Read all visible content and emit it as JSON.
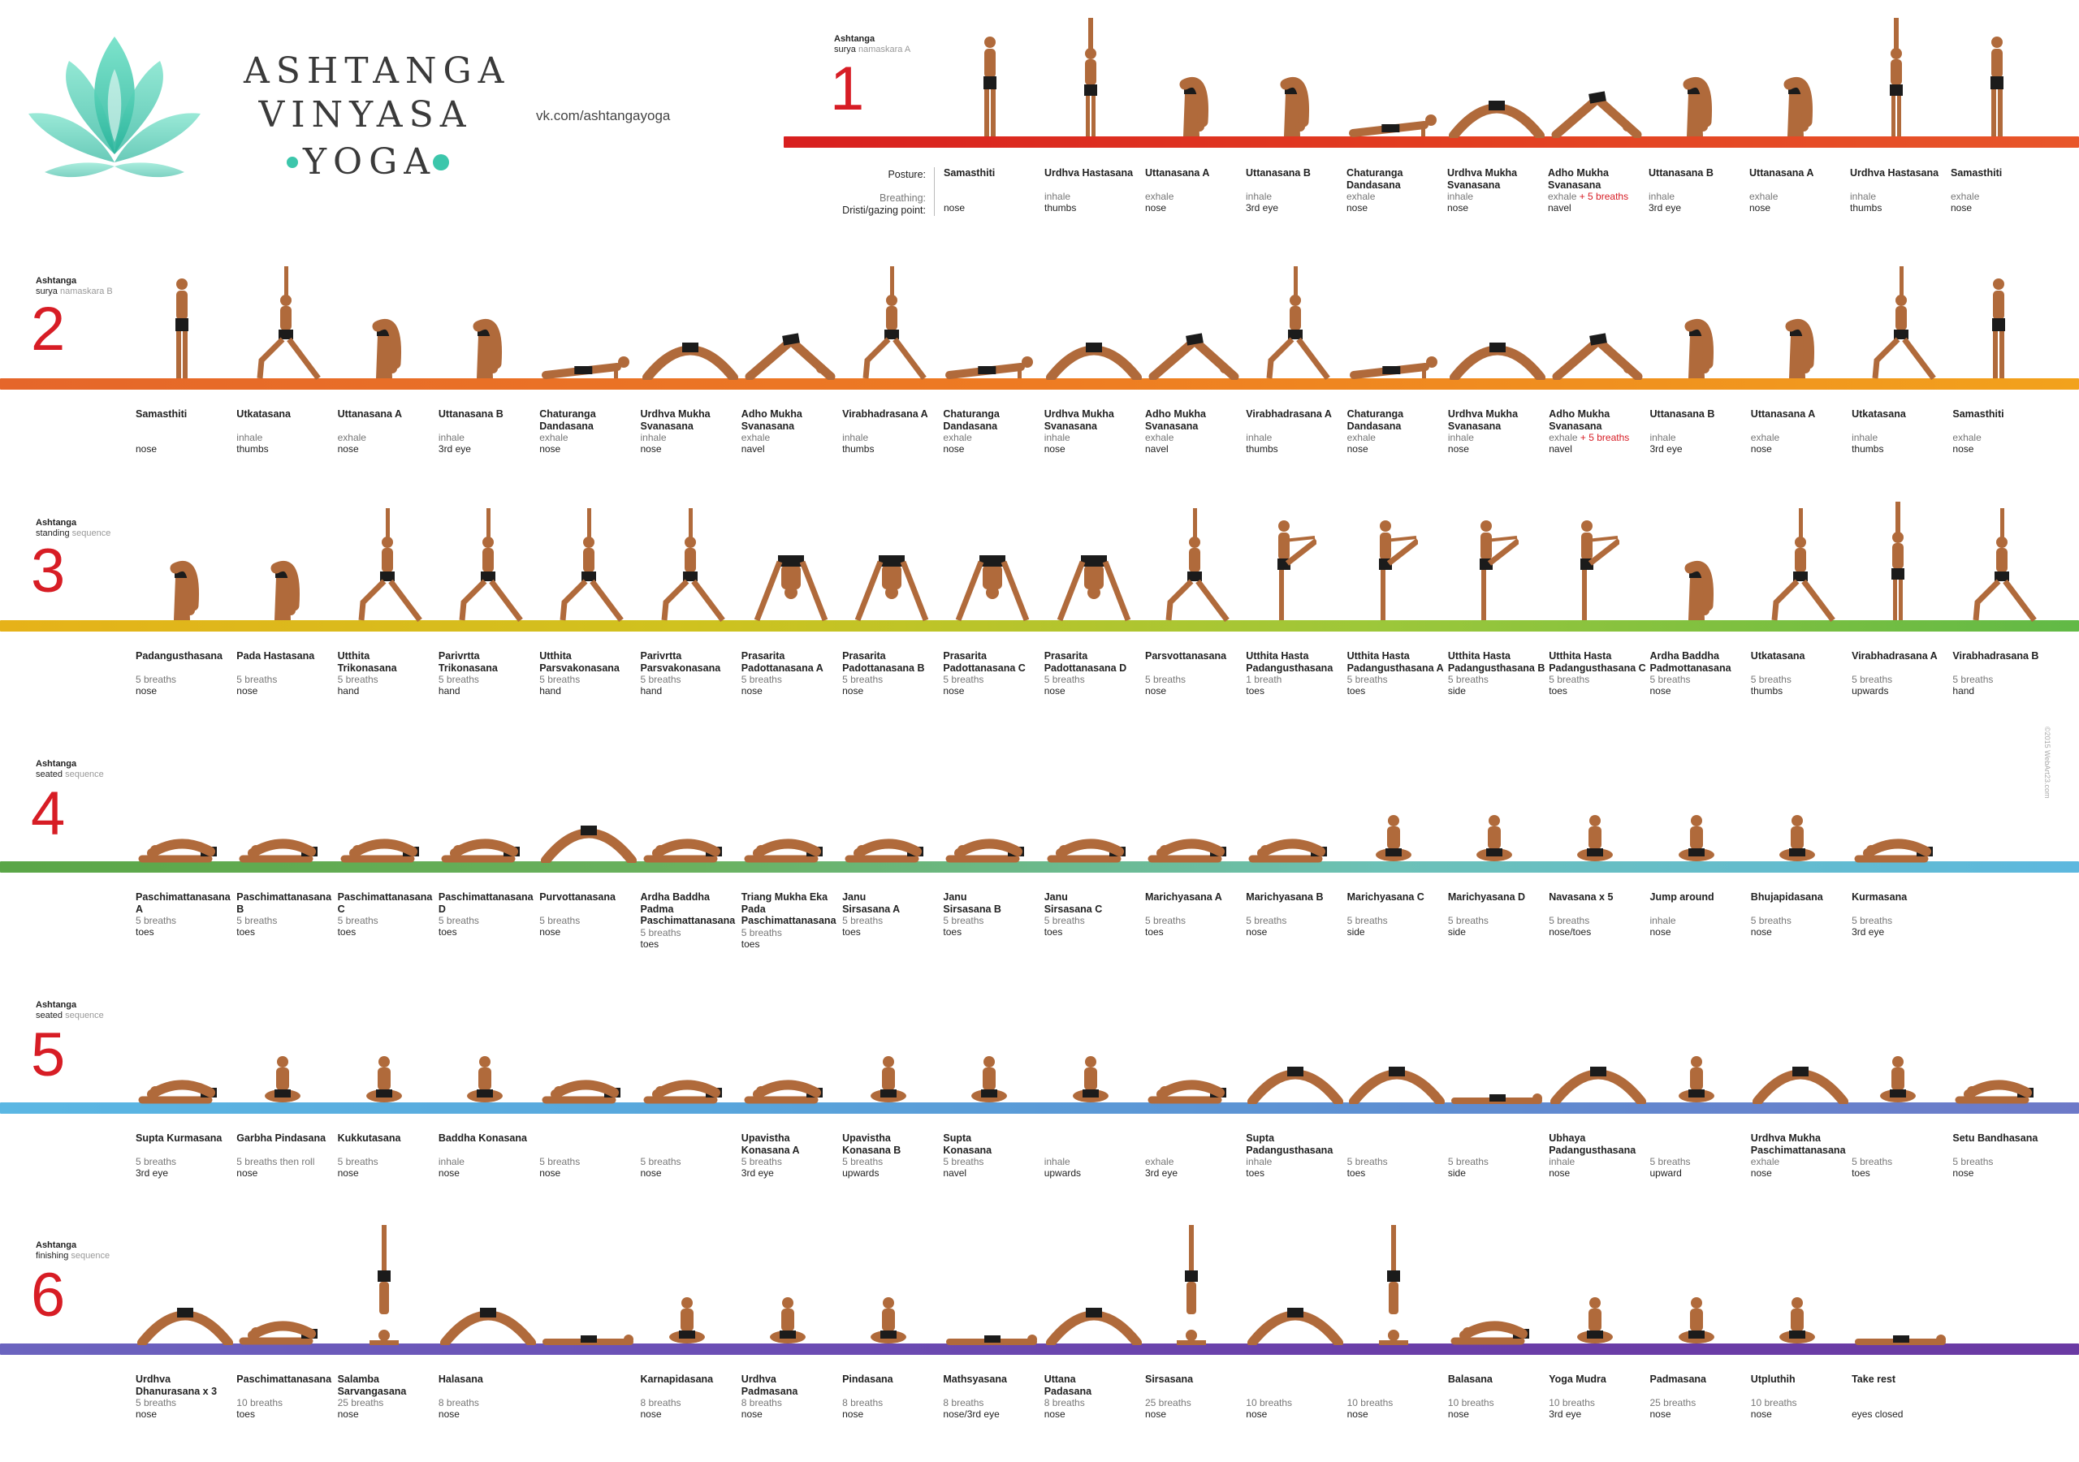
{
  "brand": {
    "title_line1": "ASHTANGA",
    "title_line2": "VINYASA",
    "title_line3": "YOGA",
    "url": "vk.com/ashtangayoga"
  },
  "colors": {
    "accent_red": "#d71d25",
    "logo_teal": "#3cc6ab"
  },
  "legend": {
    "posture": "Posture:",
    "breathing": "Breathing:",
    "drishti": "Dristi/gazing point:"
  },
  "credit": "©2015 WebArt23.com",
  "sections": [
    {
      "number": "1",
      "label": "Ashtanga",
      "sub_dark": "surya",
      "sub_grey": "namaskara A",
      "poses": [
        {
          "name": "Samasthiti",
          "breath": "",
          "drishti": "nose"
        },
        {
          "name": "Urdhva Hastasana",
          "breath": "inhale",
          "drishti": "thumbs"
        },
        {
          "name": "Uttanasana A",
          "breath": "exhale",
          "drishti": "nose"
        },
        {
          "name": "Uttanasana B",
          "breath": "inhale",
          "drishti": "3rd eye"
        },
        {
          "name": "Chaturanga\nDandasana",
          "breath": "exhale",
          "drishti": "nose"
        },
        {
          "name": "Urdhva Mukha\nSvanasana",
          "breath": "inhale",
          "drishti": "nose"
        },
        {
          "name": "Adho Mukha\nSvanasana",
          "breath": "exhale",
          "extra": "+ 5 breaths",
          "drishti": "navel"
        },
        {
          "name": "Uttanasana B",
          "breath": "inhale",
          "drishti": "3rd eye"
        },
        {
          "name": "Uttanasana A",
          "breath": "exhale",
          "drishti": "nose"
        },
        {
          "name": "Urdhva Hastasana",
          "breath": "inhale",
          "drishti": "thumbs"
        },
        {
          "name": "Samasthiti",
          "breath": "exhale",
          "drishti": "nose"
        }
      ]
    },
    {
      "number": "2",
      "label": "Ashtanga",
      "sub_dark": "surya",
      "sub_grey": "namaskara B",
      "poses": [
        {
          "name": "Samasthiti",
          "breath": "",
          "drishti": "nose"
        },
        {
          "name": "Utkatasana",
          "breath": "inhale",
          "drishti": "thumbs"
        },
        {
          "name": "Uttanasana A",
          "breath": "exhale",
          "drishti": "nose"
        },
        {
          "name": "Uttanasana B",
          "breath": "inhale",
          "drishti": "3rd eye"
        },
        {
          "name": "Chaturanga\nDandasana",
          "breath": "exhale",
          "drishti": "nose"
        },
        {
          "name": "Urdhva Mukha\nSvanasana",
          "breath": "inhale",
          "drishti": "nose"
        },
        {
          "name": "Adho Mukha\nSvanasana",
          "breath": "exhale",
          "drishti": "navel"
        },
        {
          "name": "Virabhadrasana A",
          "breath": "inhale",
          "drishti": "thumbs"
        },
        {
          "name": "Chaturanga\nDandasana",
          "breath": "exhale",
          "drishti": "nose"
        },
        {
          "name": "Urdhva Mukha\nSvanasana",
          "breath": "inhale",
          "drishti": "nose"
        },
        {
          "name": "Adho Mukha\nSvanasana",
          "breath": "exhale",
          "drishti": "navel"
        },
        {
          "name": "Virabhadrasana A",
          "breath": "inhale",
          "drishti": "thumbs"
        },
        {
          "name": "Chaturanga\nDandasana",
          "breath": "exhale",
          "drishti": "nose"
        },
        {
          "name": "Urdhva Mukha\nSvanasana",
          "breath": "inhale",
          "drishti": "nose"
        },
        {
          "name": "Adho Mukha\nSvanasana",
          "breath": "exhale",
          "extra": "+ 5 breaths",
          "drishti": "navel"
        },
        {
          "name": "Uttanasana B",
          "breath": "inhale",
          "drishti": "3rd eye"
        },
        {
          "name": "Uttanasana A",
          "breath": "exhale",
          "drishti": "nose"
        },
        {
          "name": "Utkatasana",
          "breath": "inhale",
          "drishti": "thumbs"
        },
        {
          "name": "Samasthiti",
          "breath": "exhale",
          "drishti": "nose"
        }
      ]
    },
    {
      "number": "3",
      "label": "Ashtanga",
      "sub_dark": "standing",
      "sub_grey": "sequence",
      "poses": [
        {
          "name": "Padangusthasana",
          "breath": "5 breaths",
          "drishti": "nose"
        },
        {
          "name": "Pada Hastasana",
          "breath": "5 breaths",
          "drishti": "nose"
        },
        {
          "name": "Utthita\nTrikonasana",
          "breath": "5 breaths",
          "drishti": "hand"
        },
        {
          "name": "Parivrtta\nTrikonasana",
          "breath": "5 breaths",
          "drishti": "hand"
        },
        {
          "name": "Utthita\nParsvakonasana",
          "breath": "5 breaths",
          "drishti": "hand"
        },
        {
          "name": "Parivrtta\nParsvakonasana",
          "breath": "5 breaths",
          "drishti": "hand"
        },
        {
          "name": "Prasarita\nPadottanasana A",
          "breath": "5 breaths",
          "drishti": "nose"
        },
        {
          "name": "Prasarita\nPadottanasana B",
          "breath": "5 breaths",
          "drishti": "nose"
        },
        {
          "name": "Prasarita\nPadottanasana C",
          "breath": "5 breaths",
          "drishti": "nose"
        },
        {
          "name": "Prasarita\nPadottanasana D",
          "breath": "5 breaths",
          "drishti": "nose"
        },
        {
          "name": "Parsvottanasana",
          "breath": "5 breaths",
          "drishti": "nose"
        },
        {
          "name": "Utthita Hasta\nPadangusthasana",
          "breath": "1 breath",
          "drishti": "toes"
        },
        {
          "name": "Utthita Hasta\nPadangusthasana A",
          "breath": "5 breaths",
          "drishti": "toes"
        },
        {
          "name": "Utthita Hasta\nPadangusthasana B",
          "breath": "5 breaths",
          "drishti": "side"
        },
        {
          "name": "Utthita Hasta\nPadangusthasana C",
          "breath": "5 breaths",
          "drishti": "toes"
        },
        {
          "name": "Ardha Baddha\nPadmottanasana",
          "breath": "5 breaths",
          "drishti": "nose"
        },
        {
          "name": "Utkatasana",
          "breath": "5 breaths",
          "drishti": "thumbs"
        },
        {
          "name": "Virabhadrasana A",
          "breath": "5 breaths",
          "drishti": "upwards"
        },
        {
          "name": "Virabhadrasana B",
          "breath": "5 breaths",
          "drishti": "hand"
        }
      ]
    },
    {
      "number": "4",
      "label": "Ashtanga",
      "sub_dark": "seated",
      "sub_grey": "sequence",
      "poses": [
        {
          "name": "Paschimattanasana\nA",
          "breath": "5 breaths",
          "drishti": "toes"
        },
        {
          "name": "Paschimattanasana\nB",
          "breath": "5 breaths",
          "drishti": "toes"
        },
        {
          "name": "Paschimattanasana\nC",
          "breath": "5 breaths",
          "drishti": "toes"
        },
        {
          "name": "Paschimattanasana\nD",
          "breath": "5 breaths",
          "drishti": "toes"
        },
        {
          "name": "Purvottanasana",
          "breath": "5 breaths",
          "drishti": "nose"
        },
        {
          "name": "Ardha Baddha Padma\nPaschimattanasana",
          "breath": "5 breaths",
          "drishti": "toes"
        },
        {
          "name": "Triang Mukha Eka Pada\nPaschimattanasana",
          "breath": "5 breaths",
          "drishti": "toes"
        },
        {
          "name": "Janu\nSirsasana A",
          "breath": "5 breaths",
          "drishti": "toes"
        },
        {
          "name": "Janu\nSirsasana B",
          "breath": "5 breaths",
          "drishti": "toes"
        },
        {
          "name": "Janu\nSirsasana C",
          "breath": "5 breaths",
          "drishti": "toes"
        },
        {
          "name": "Marichyasana A",
          "breath": "5 breaths",
          "drishti": "toes"
        },
        {
          "name": "Marichyasana B",
          "breath": "5 breaths",
          "drishti": "nose"
        },
        {
          "name": "Marichyasana C",
          "breath": "5 breaths",
          "drishti": "side"
        },
        {
          "name": "Marichyasana D",
          "breath": "5 breaths",
          "drishti": "side"
        },
        {
          "name": "Navasana x 5",
          "breath": "5 breaths",
          "drishti": "nose/toes"
        },
        {
          "name": "Jump around",
          "breath": "inhale",
          "drishti": "nose"
        },
        {
          "name": "Bhujapidasana",
          "breath": "5 breaths",
          "drishti": "nose"
        },
        {
          "name": "Kurmasana",
          "breath": "5 breaths",
          "drishti": "3rd eye"
        }
      ]
    },
    {
      "number": "5",
      "label": "Ashtanga",
      "sub_dark": "seated",
      "sub_grey": "sequence",
      "poses": [
        {
          "name": "Supta Kurmasana",
          "breath": "5 breaths",
          "drishti": "3rd eye"
        },
        {
          "name": "Garbha Pindasana",
          "breath": "5 breaths then roll",
          "drishti": "nose"
        },
        {
          "name": "Kukkutasana",
          "breath": "5 breaths",
          "drishti": "nose"
        },
        {
          "name": "Baddha Konasana",
          "breath": "inhale",
          "drishti": "nose"
        },
        {
          "name": "",
          "breath": "5 breaths",
          "drishti": "nose"
        },
        {
          "name": "",
          "breath": "5 breaths",
          "drishti": "nose"
        },
        {
          "name": "Upavistha\nKonasana A",
          "breath": "5 breaths",
          "drishti": "3rd eye"
        },
        {
          "name": "Upavistha\nKonasana B",
          "breath": "5 breaths",
          "drishti": "upwards"
        },
        {
          "name": "Supta\nKonasana",
          "breath": "5 breaths",
          "drishti": "navel"
        },
        {
          "name": "",
          "breath": "inhale",
          "drishti": "upwards"
        },
        {
          "name": "",
          "breath": "exhale",
          "drishti": "3rd eye"
        },
        {
          "name": "Supta\nPadangusthasana",
          "breath": "inhale",
          "drishti": "toes"
        },
        {
          "name": "",
          "breath": "5 breaths",
          "drishti": "toes"
        },
        {
          "name": "",
          "breath": "5 breaths",
          "drishti": "side"
        },
        {
          "name": "Ubhaya\nPadangusthasana",
          "breath": "inhale",
          "drishti": "nose"
        },
        {
          "name": "",
          "breath": "5 breaths",
          "drishti": "upward"
        },
        {
          "name": "Urdhva Mukha\nPaschimattanasana",
          "breath": "exhale",
          "drishti": "nose"
        },
        {
          "name": "",
          "breath": "5 breaths",
          "drishti": "toes"
        },
        {
          "name": "Setu Bandhasana",
          "breath": "5 breaths",
          "drishti": "nose"
        }
      ]
    },
    {
      "number": "6",
      "label": "Ashtanga",
      "sub_dark": "finishing",
      "sub_grey": "sequence",
      "poses": [
        {
          "name": "Urdhva\nDhanurasana x 3",
          "breath": "5 breaths",
          "drishti": "nose"
        },
        {
          "name": "Paschimattanasana",
          "breath": "10 breaths",
          "drishti": "toes"
        },
        {
          "name": "Salamba\nSarvangasana",
          "breath": "25 breaths",
          "drishti": "nose"
        },
        {
          "name": "Halasana",
          "breath": "8 breaths",
          "drishti": "nose"
        },
        {
          "name": "",
          "breath": "",
          "drishti": ""
        },
        {
          "name": "Karnapidasana",
          "breath": "8 breaths",
          "drishti": "nose"
        },
        {
          "name": "Urdhva\nPadmasana",
          "breath": "8 breaths",
          "drishti": "nose"
        },
        {
          "name": "Pindasana",
          "breath": "8 breaths",
          "drishti": "nose"
        },
        {
          "name": "Mathsyasana",
          "breath": "8 breaths",
          "drishti": "nose/3rd eye"
        },
        {
          "name": "Uttana\nPadasana",
          "breath": "8 breaths",
          "drishti": "nose"
        },
        {
          "name": "Sirsasana",
          "breath": "25 breaths",
          "drishti": "nose"
        },
        {
          "name": "",
          "breath": "10 breaths",
          "drishti": "nose"
        },
        {
          "name": "",
          "breath": "10 breaths",
          "drishti": "nose"
        },
        {
          "name": "Balasana",
          "breath": "10 breaths",
          "drishti": "nose"
        },
        {
          "name": "Yoga Mudra",
          "breath": "10 breaths",
          "drishti": "3rd eye"
        },
        {
          "name": "Padmasana",
          "breath": "25 breaths",
          "drishti": "nose"
        },
        {
          "name": "Utpluthih",
          "breath": "10 breaths",
          "drishti": "nose"
        },
        {
          "name": "Take rest",
          "breath": "",
          "drishti": "eyes closed"
        }
      ]
    }
  ]
}
